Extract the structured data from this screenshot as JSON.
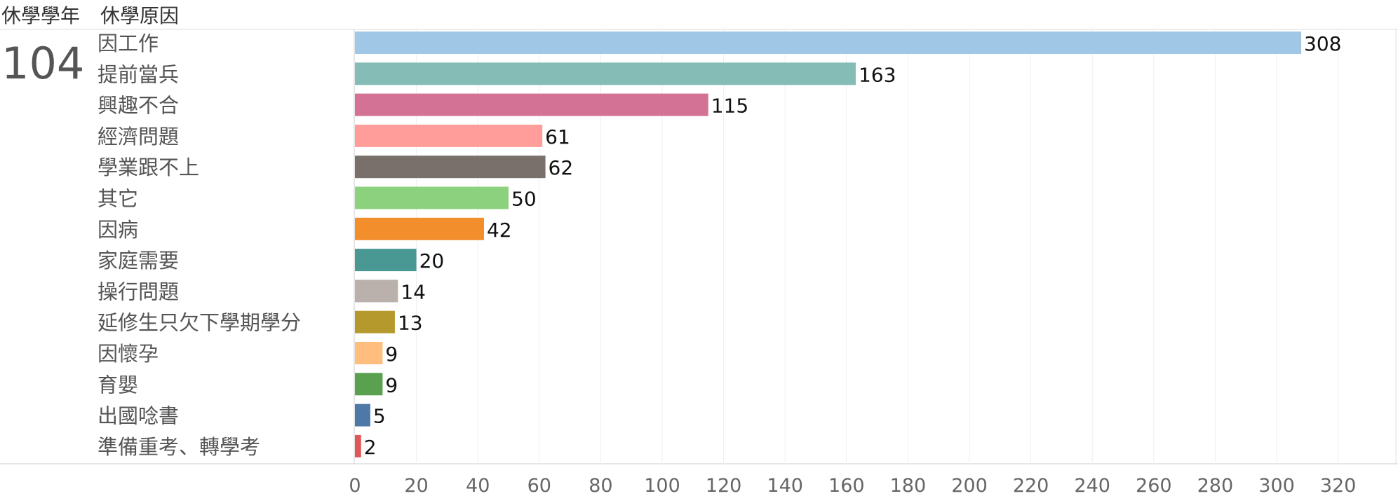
{
  "header": {
    "col1": "休學學年",
    "col2": "休學原因"
  },
  "year_label": "104",
  "chart_data": {
    "type": "bar",
    "orientation": "horizontal",
    "categories": [
      "因工作",
      "提前當兵",
      "興趣不合",
      "經濟問題",
      "學業跟不上",
      "其它",
      "因病",
      "家庭需要",
      "操行問題",
      "延修生只欠下學期學分",
      "因懷孕",
      "育嬰",
      "出國唸書",
      "準備重考、轉學考"
    ],
    "values": [
      308,
      163,
      115,
      61,
      62,
      50,
      42,
      20,
      14,
      13,
      9,
      9,
      5,
      2
    ],
    "colors": [
      "#a0c8e6",
      "#86bcb6",
      "#d37295",
      "#ff9d9a",
      "#796f6b",
      "#8cd17d",
      "#f28e2b",
      "#499894",
      "#bab0ac",
      "#b6992d",
      "#ffbe7d",
      "#59a14f",
      "#4e79a7",
      "#e15759"
    ],
    "xlim": [
      0,
      330
    ],
    "xticks": [
      0,
      20,
      40,
      60,
      80,
      100,
      120,
      140,
      160,
      180,
      200,
      220,
      240,
      260,
      280,
      300,
      320
    ],
    "grid": true,
    "data_labels": true
  }
}
